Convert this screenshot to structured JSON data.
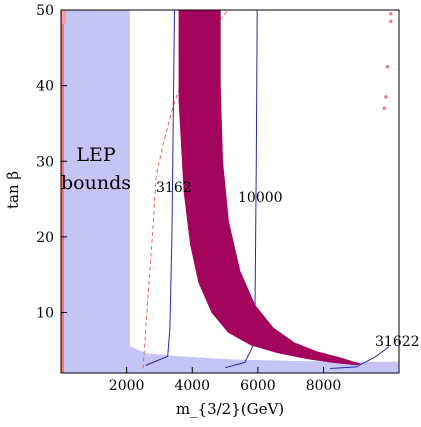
{
  "chart_data": {
    "type": "area",
    "title": "",
    "xlabel": "m_{3/2}(GeV)",
    "ylabel": "tan β",
    "xlim": [
      0,
      10300
    ],
    "ylim": [
      2,
      50
    ],
    "x_ticks": [
      2000,
      4000,
      6000,
      8000
    ],
    "y_ticks": [
      10,
      20,
      30,
      40,
      50
    ],
    "x_tick_labels": [
      "2000",
      "4000",
      "6000",
      "8000"
    ],
    "y_tick_labels": [
      "10",
      "20",
      "30",
      "40",
      "50"
    ],
    "grid": false,
    "annotations": {
      "lep_line1": "LEP",
      "lep_line2": "bounds",
      "contour_a": "3162",
      "contour_b": "10000",
      "contour_c": "31622"
    },
    "colors": {
      "lep_region": "#c5c5f5",
      "red_edge": "#ff7070",
      "band": "#a3045c",
      "contour_line": "#2a2aaa",
      "dashed_line": "#ff6060",
      "points": "#f08080"
    },
    "regions": {
      "lep": {
        "x": [
          0,
          2100
        ],
        "y": [
          2,
          50
        ],
        "low_strip_y": [
          2,
          3.5
        ]
      },
      "band_left": [
        [
          3600,
          50
        ],
        [
          3600,
          38
        ],
        [
          3750,
          26
        ],
        [
          3950,
          19
        ],
        [
          4200,
          14
        ],
        [
          4600,
          10
        ],
        [
          5100,
          7.4
        ],
        [
          5800,
          5.7
        ],
        [
          6600,
          4.7
        ],
        [
          7500,
          3.9
        ],
        [
          8300,
          3.4
        ],
        [
          9000,
          3.1
        ]
      ],
      "band_right": [
        [
          4850,
          50
        ],
        [
          4850,
          40
        ],
        [
          4920,
          30
        ],
        [
          5100,
          22
        ],
        [
          5450,
          15.5
        ],
        [
          5900,
          11
        ],
        [
          6450,
          8
        ],
        [
          7100,
          6
        ],
        [
          7800,
          4.8
        ],
        [
          8500,
          4
        ],
        [
          9100,
          3.2
        ]
      ]
    },
    "contours": [
      {
        "label": "3162",
        "points": [
          [
            2580,
            3
          ],
          [
            3250,
            4.2
          ],
          [
            3320,
            8
          ],
          [
            3380,
            20
          ],
          [
            3420,
            35
          ],
          [
            3460,
            50
          ]
        ]
      },
      {
        "label": "10000",
        "points": [
          [
            5000,
            2.7
          ],
          [
            5600,
            3.4
          ],
          [
            5900,
            6
          ],
          [
            5920,
            15
          ],
          [
            5950,
            30
          ],
          [
            5980,
            50
          ]
        ]
      },
      {
        "label": "31622",
        "points": [
          [
            8200,
            2.6
          ],
          [
            9000,
            2.8
          ],
          [
            9600,
            4.2
          ],
          [
            10000,
            5.5
          ]
        ]
      }
    ],
    "dashed_curve": [
      [
        2500,
        2.6
      ],
      [
        2650,
        12
      ],
      [
        2800,
        21
      ],
      [
        2900,
        28
      ],
      [
        3100,
        32
      ],
      [
        3400,
        37
      ],
      [
        3800,
        42
      ],
      [
        4300,
        46
      ],
      [
        5100,
        50
      ]
    ],
    "scatter_points": [
      [
        10050,
        49.5
      ],
      [
        10050,
        48.5
      ],
      [
        9950,
        42.5
      ],
      [
        9900,
        38.5
      ],
      [
        9850,
        37
      ]
    ]
  }
}
